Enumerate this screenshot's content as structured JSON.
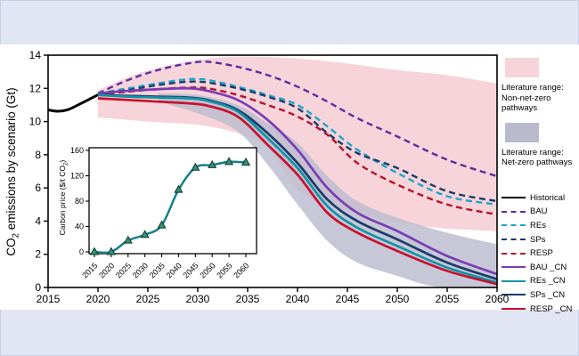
{
  "background": {
    "page": "#e2e5f4",
    "figure": "#ffffff"
  },
  "labels": {
    "main_ylabel": {
      "prefix": "CO",
      "sub": "2",
      "rest": " emissions by scenario (Gt)"
    },
    "inset_ylabel": {
      "prefix": "Carbon price ($/t CO",
      "sub": "2",
      "rest": ")"
    }
  },
  "legend": {
    "patches": [
      {
        "label_lines": [
          "Literature range:",
          "Non-net-zero",
          "pathways"
        ],
        "color": "#f7d4d9"
      },
      {
        "label_lines": [
          "Literature range:",
          "Net-zero pathways"
        ],
        "color": "#b9bacd"
      }
    ],
    "series": [
      {
        "label": "Historical",
        "color": "#000000",
        "dash": false
      },
      {
        "label": "BAU",
        "color": "#5b2da0",
        "dash": true
      },
      {
        "label": "REs",
        "color": "#1ba6c9",
        "dash": true
      },
      {
        "label": "SPs",
        "color": "#1b3a6b",
        "dash": true
      },
      {
        "label": "RESP",
        "color": "#b5122b",
        "dash": true
      },
      {
        "label": "BAU _CN",
        "color": "#7a3cb5",
        "dash": false
      },
      {
        "label": "REs _CN",
        "color": "#0f93a5",
        "dash": false
      },
      {
        "label": "SPs _CN",
        "color": "#1b3a6b",
        "dash": false
      },
      {
        "label": "RESP _CN",
        "color": "#c8102e",
        "dash": false
      }
    ]
  },
  "chart_data": [
    {
      "type": "line",
      "title": "",
      "xlabel": "",
      "ylabel": "CO2 emissions by scenario (Gt)",
      "xlim": [
        2015,
        2060
      ],
      "ylim": [
        0,
        14
      ],
      "xticks": [
        2015,
        2020,
        2025,
        2030,
        2035,
        2040,
        2045,
        2050,
        2055,
        2060
      ],
      "yticks": [
        0,
        2,
        4,
        6,
        8,
        10,
        12,
        14
      ],
      "grid": false,
      "legend_position": "right",
      "bands": [
        {
          "name": "Literature range: Non-net-zero pathways",
          "color": "#f7d4d9",
          "opacity": 1,
          "top": [
            [
              2020,
              11.9
            ],
            [
              2024,
              12.9
            ],
            [
              2028,
              13.5
            ],
            [
              2032,
              13.85
            ],
            [
              2036,
              13.9
            ],
            [
              2040,
              13.8
            ],
            [
              2045,
              13.5
            ],
            [
              2050,
              13.1
            ],
            [
              2055,
              12.8
            ],
            [
              2060,
              12.3
            ]
          ],
          "bottom": [
            [
              2020,
              10.25
            ],
            [
              2025,
              10.0
            ],
            [
              2030,
              9.8
            ],
            [
              2034,
              9.3
            ],
            [
              2037,
              8.4
            ],
            [
              2040,
              5.9
            ],
            [
              2043,
              5.0
            ],
            [
              2046,
              4.5
            ],
            [
              2050,
              3.9
            ],
            [
              2055,
              3.55
            ],
            [
              2060,
              3.4
            ]
          ]
        },
        {
          "name": "Literature range: Net-zero pathways",
          "color": "#b9bacd",
          "opacity": 0.8,
          "top": [
            [
              2026,
              11.7
            ],
            [
              2030,
              11.6
            ],
            [
              2034,
              11.0
            ],
            [
              2037,
              9.9
            ],
            [
              2040,
              8.7
            ],
            [
              2043,
              6.7
            ],
            [
              2046,
              5.2
            ],
            [
              2050,
              4.2
            ],
            [
              2055,
              3.3
            ],
            [
              2060,
              2.6
            ]
          ],
          "bottom": [
            [
              2026,
              11.2
            ],
            [
              2030,
              10.5
            ],
            [
              2034,
              9.4
            ],
            [
              2037,
              7.4
            ],
            [
              2040,
              5.0
            ],
            [
              2043,
              2.8
            ],
            [
              2046,
              1.5
            ],
            [
              2050,
              0.7
            ],
            [
              2054,
              0.05
            ],
            [
              2060,
              0.02
            ]
          ]
        }
      ],
      "series": [
        {
          "name": "Historical",
          "color": "#000000",
          "dash": false,
          "width": 3,
          "points": [
            [
              2015,
              10.7
            ],
            [
              2016,
              10.62
            ],
            [
              2017,
              10.72
            ],
            [
              2018,
              11.0
            ],
            [
              2019,
              11.3
            ],
            [
              2020,
              11.6
            ],
            [
              2021,
              11.75
            ]
          ]
        },
        {
          "name": "BAU",
          "color": "#5b2da0",
          "dash": true,
          "width": 2.4,
          "points": [
            [
              2020,
              11.7
            ],
            [
              2023,
              12.5
            ],
            [
              2026,
              13.1
            ],
            [
              2029,
              13.5
            ],
            [
              2031,
              13.6
            ],
            [
              2034,
              13.3
            ],
            [
              2037,
              12.8
            ],
            [
              2040,
              12.1
            ],
            [
              2043,
              11.2
            ],
            [
              2046,
              10.2
            ],
            [
              2050,
              9.1
            ],
            [
              2055,
              7.7
            ],
            [
              2060,
              6.7
            ]
          ]
        },
        {
          "name": "REs",
          "color": "#1ba6c9",
          "dash": true,
          "width": 2.4,
          "points": [
            [
              2020,
              11.7
            ],
            [
              2023,
              12.0
            ],
            [
              2026,
              12.3
            ],
            [
              2029,
              12.55
            ],
            [
              2031,
              12.5
            ],
            [
              2034,
              12.1
            ],
            [
              2037,
              11.6
            ],
            [
              2040,
              11.0
            ],
            [
              2043,
              9.7
            ],
            [
              2046,
              8.3
            ],
            [
              2050,
              6.9
            ],
            [
              2055,
              5.5
            ],
            [
              2060,
              5.0
            ]
          ]
        },
        {
          "name": "SPs",
          "color": "#1b3a6b",
          "dash": true,
          "width": 2.4,
          "points": [
            [
              2020,
              11.7
            ],
            [
              2023,
              11.9
            ],
            [
              2026,
              12.2
            ],
            [
              2029,
              12.4
            ],
            [
              2031,
              12.35
            ],
            [
              2034,
              12.0
            ],
            [
              2037,
              11.5
            ],
            [
              2040,
              10.8
            ],
            [
              2043,
              9.3
            ],
            [
              2046,
              8.1
            ],
            [
              2050,
              7.2
            ],
            [
              2055,
              5.8
            ],
            [
              2060,
              5.2
            ]
          ]
        },
        {
          "name": "RESP",
          "color": "#b5122b",
          "dash": true,
          "width": 2.4,
          "points": [
            [
              2020,
              11.6
            ],
            [
              2023,
              11.8
            ],
            [
              2026,
              11.95
            ],
            [
              2029,
              12.05
            ],
            [
              2031,
              12.0
            ],
            [
              2034,
              11.6
            ],
            [
              2037,
              11.0
            ],
            [
              2040,
              10.3
            ],
            [
              2043,
              9.2
            ],
            [
              2046,
              7.5
            ],
            [
              2050,
              6.2
            ],
            [
              2055,
              5.0
            ],
            [
              2060,
              4.4
            ]
          ]
        },
        {
          "name": "BAU _CN",
          "color": "#7a3cb5",
          "dash": false,
          "width": 2.7,
          "points": [
            [
              2020,
              11.7
            ],
            [
              2023,
              11.85
            ],
            [
              2026,
              11.95
            ],
            [
              2029,
              12.0
            ],
            [
              2031,
              11.85
            ],
            [
              2034,
              11.3
            ],
            [
              2037,
              10.1
            ],
            [
              2040,
              8.3
            ],
            [
              2043,
              6.0
            ],
            [
              2046,
              4.5
            ],
            [
              2050,
              3.4
            ],
            [
              2055,
              1.9
            ],
            [
              2060,
              0.8
            ]
          ]
        },
        {
          "name": "SPs _CN",
          "color": "#1b3a6b",
          "dash": false,
          "width": 2.7,
          "points": [
            [
              2020,
              11.6
            ],
            [
              2023,
              11.55
            ],
            [
              2026,
              11.5
            ],
            [
              2029,
              11.45
            ],
            [
              2031,
              11.3
            ],
            [
              2034,
              10.7
            ],
            [
              2037,
              9.3
            ],
            [
              2040,
              7.5
            ],
            [
              2043,
              5.3
            ],
            [
              2046,
              4.0
            ],
            [
              2050,
              2.9
            ],
            [
              2055,
              1.5
            ],
            [
              2060,
              0.5
            ]
          ]
        },
        {
          "name": "REs _CN",
          "color": "#0f93a5",
          "dash": false,
          "width": 2.7,
          "points": [
            [
              2020,
              11.6
            ],
            [
              2023,
              11.5
            ],
            [
              2026,
              11.45
            ],
            [
              2029,
              11.4
            ],
            [
              2031,
              11.25
            ],
            [
              2034,
              10.6
            ],
            [
              2037,
              9.0
            ],
            [
              2040,
              7.2
            ],
            [
              2043,
              4.9
            ],
            [
              2046,
              3.6
            ],
            [
              2050,
              2.5
            ],
            [
              2055,
              1.2
            ],
            [
              2060,
              0.3
            ]
          ]
        },
        {
          "name": "RESP _CN",
          "color": "#c8102e",
          "dash": false,
          "width": 2.7,
          "points": [
            [
              2020,
              11.4
            ],
            [
              2023,
              11.3
            ],
            [
              2026,
              11.2
            ],
            [
              2029,
              11.1
            ],
            [
              2031,
              10.95
            ],
            [
              2034,
              10.3
            ],
            [
              2037,
              8.6
            ],
            [
              2040,
              6.8
            ],
            [
              2043,
              4.5
            ],
            [
              2046,
              3.3
            ],
            [
              2050,
              2.2
            ],
            [
              2055,
              1.0
            ],
            [
              2060,
              0.2
            ]
          ]
        }
      ]
    },
    {
      "type": "line",
      "title": "",
      "xlabel": "",
      "ylabel": "Carbon price ($/t CO2)",
      "xlim": [
        2015,
        2060
      ],
      "ylim": [
        0,
        160
      ],
      "xticks": [
        2015,
        2020,
        2025,
        2030,
        2035,
        2040,
        2045,
        2050,
        2055,
        2060
      ],
      "yticks": [
        0,
        40,
        80,
        120,
        160
      ],
      "grid": false,
      "series": [
        {
          "name": "Carbon price",
          "color": "#177f8c",
          "width": 2.5,
          "marker": "triangle-up",
          "marker_fill": "#2e9478",
          "marker_edge": "#10352a",
          "x": [
            2015,
            2020,
            2025,
            2030,
            2035,
            2040,
            2045,
            2050,
            2055,
            2060
          ],
          "values": [
            0,
            0,
            18,
            27,
            42,
            98,
            133,
            137,
            142,
            141
          ]
        }
      ]
    }
  ]
}
